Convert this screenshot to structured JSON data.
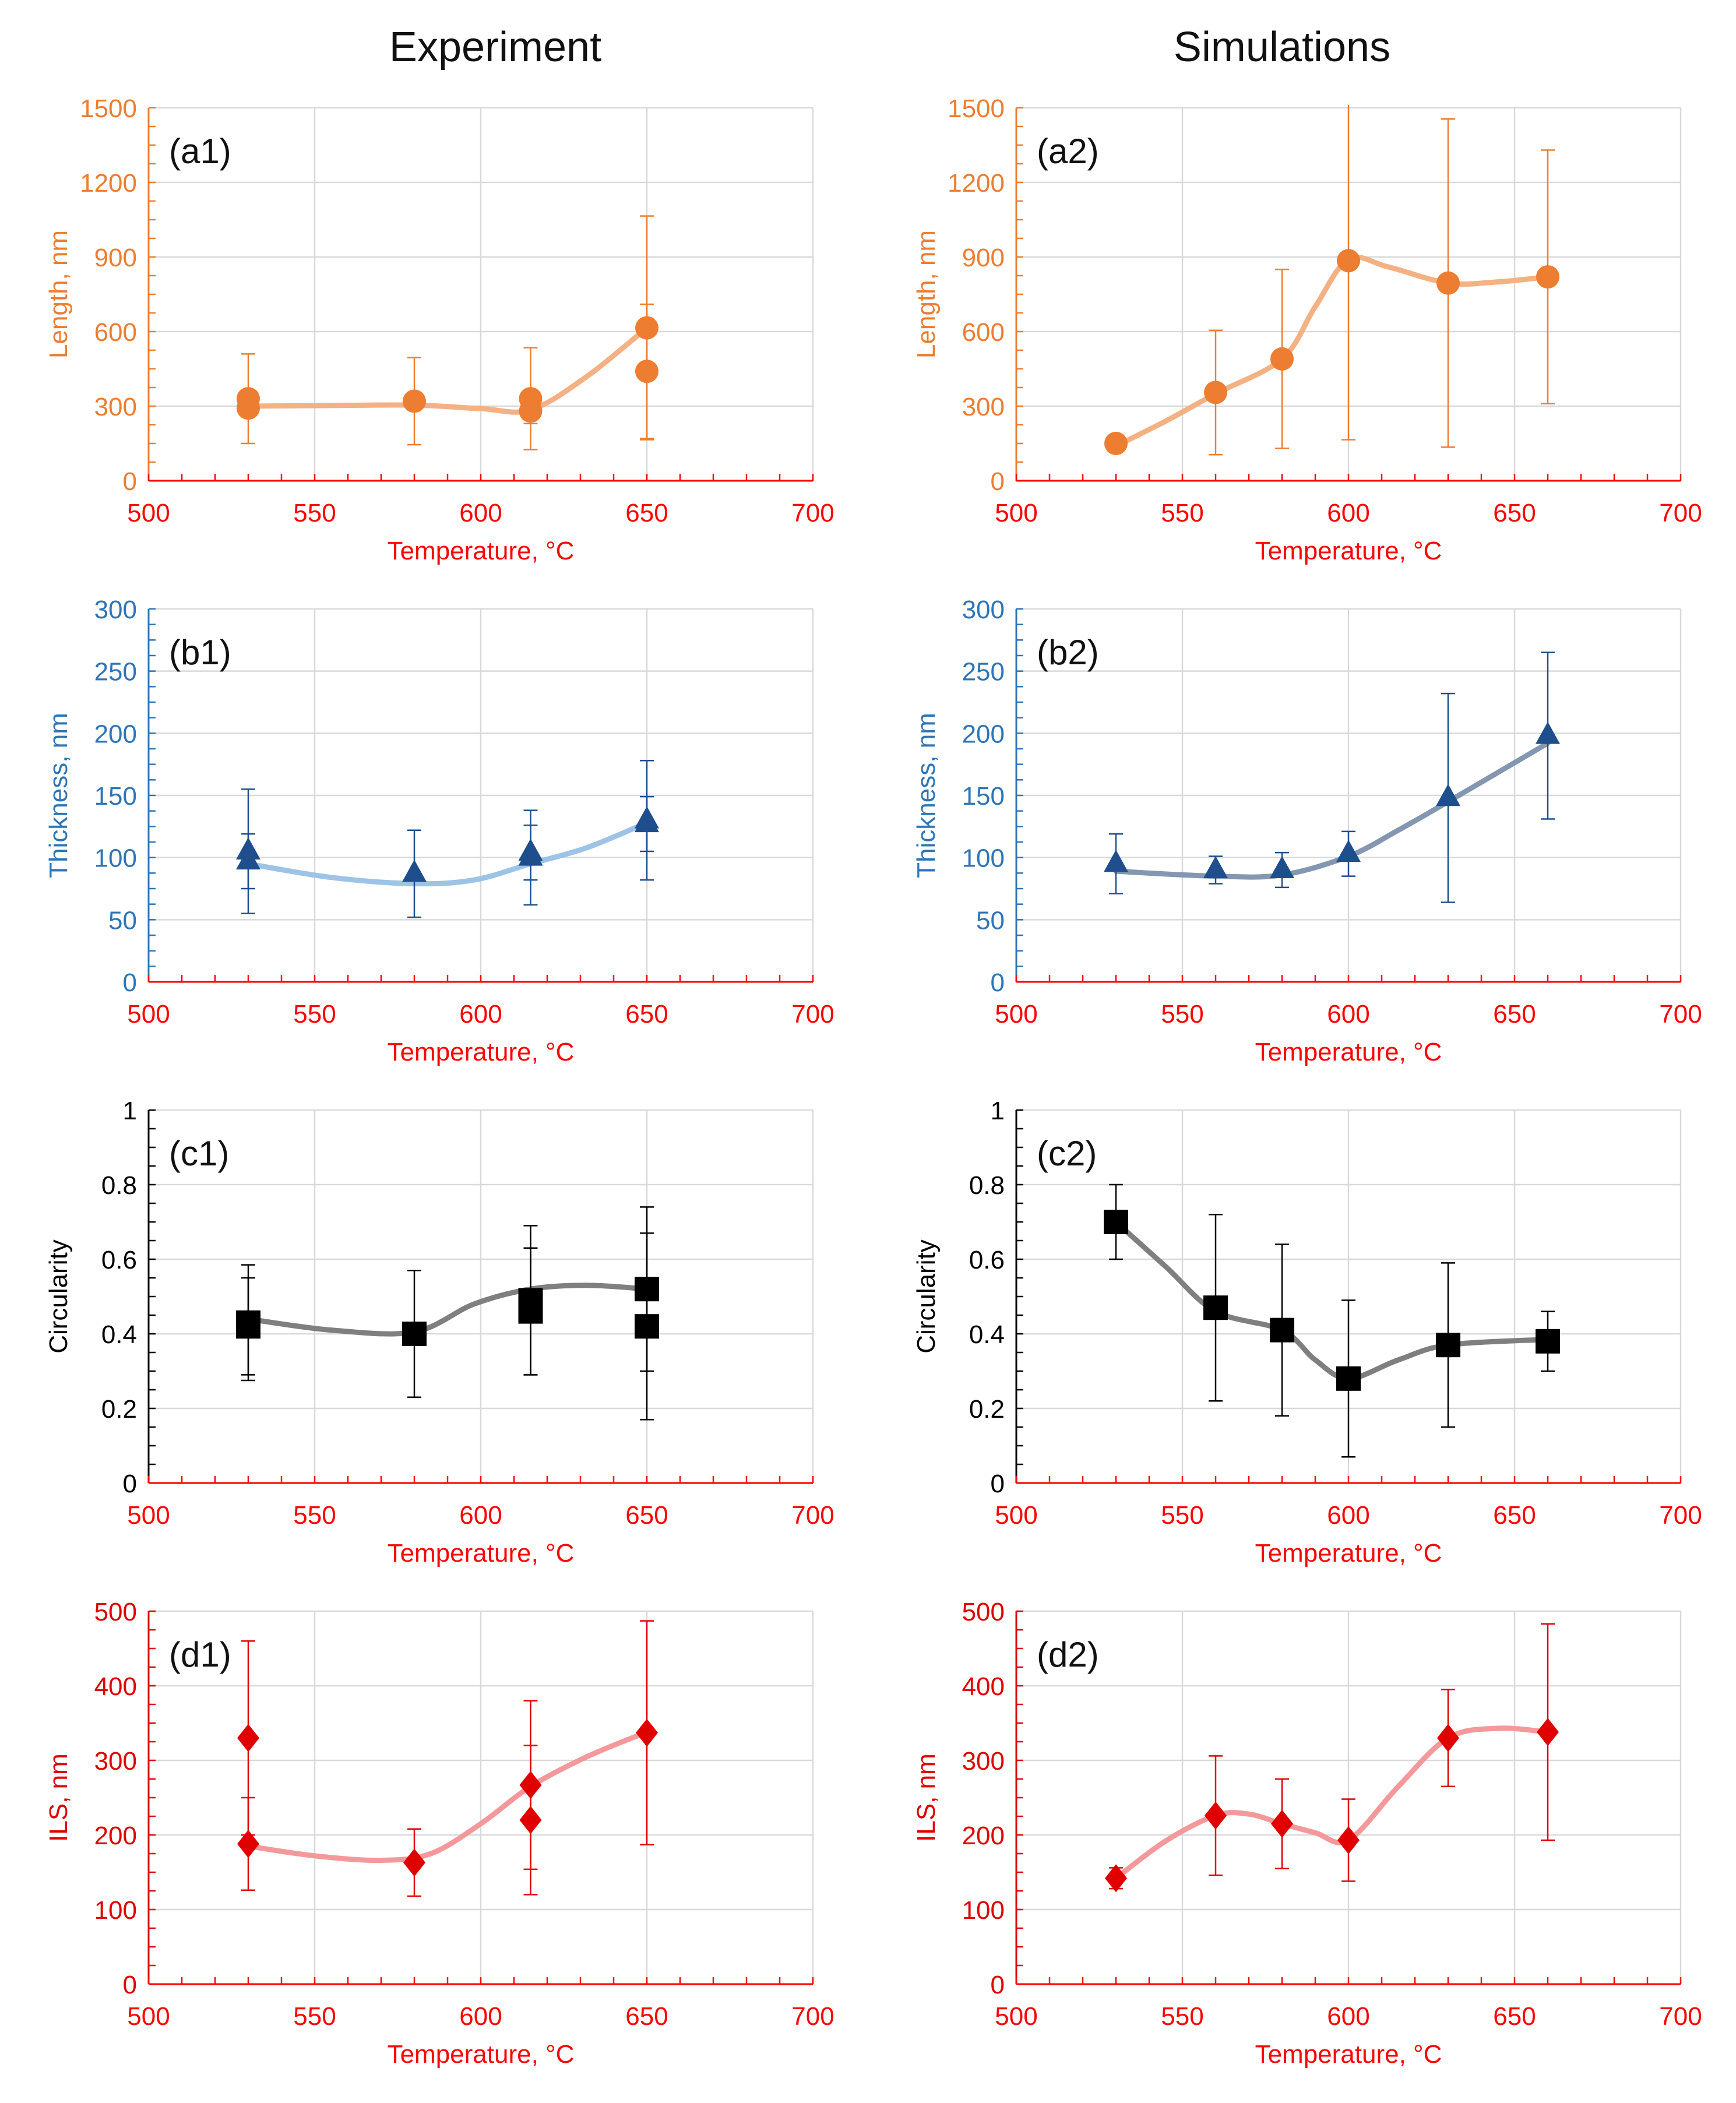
{
  "figure": {
    "column_titles": [
      "Experiment",
      "Simulations"
    ]
  },
  "chart_data": [
    {
      "id": "a1",
      "panel_label": "(a1)",
      "type": "scatter",
      "color": "#ED7D31",
      "curve_color": "#F4B183",
      "axis_color": "#ED7D31",
      "x_axis_color": "#FF0000",
      "marker": "circle",
      "xlabel": "Temperature, °C",
      "ylabel": "Length, nm",
      "xlim": [
        500,
        700
      ],
      "ylim": [
        0,
        1500
      ],
      "xticks": [
        500,
        550,
        600,
        650,
        700
      ],
      "yticks": [
        0,
        300,
        600,
        900,
        1200,
        1500
      ],
      "ytick_labels": [
        "0",
        "300",
        "600",
        "900",
        "1200",
        "1500"
      ],
      "points": [
        {
          "x": 530,
          "y": 330,
          "err": 180
        },
        {
          "x": 530,
          "y": 292,
          "err": 25
        },
        {
          "x": 580,
          "y": 320,
          "err": 175
        },
        {
          "x": 615,
          "y": 330,
          "err": 205
        },
        {
          "x": 615,
          "y": 280,
          "err": 50
        },
        {
          "x": 650,
          "y": 615,
          "err": 450
        },
        {
          "x": 650,
          "y": 440,
          "err": 270
        }
      ],
      "curve": [
        [
          530,
          300
        ],
        [
          550,
          302
        ],
        [
          580,
          304
        ],
        [
          600,
          290
        ],
        [
          615,
          285
        ],
        [
          632,
          420
        ],
        [
          650,
          615
        ]
      ]
    },
    {
      "id": "a2",
      "panel_label": "(a2)",
      "type": "scatter",
      "color": "#ED7D31",
      "curve_color": "#F4B183",
      "axis_color": "#ED7D31",
      "x_axis_color": "#FF0000",
      "marker": "circle",
      "xlabel": "Temperature, °C",
      "ylabel": "Length, nm",
      "xlim": [
        500,
        700
      ],
      "ylim": [
        0,
        1500
      ],
      "xticks": [
        500,
        550,
        600,
        650,
        700
      ],
      "yticks": [
        0,
        300,
        600,
        900,
        1200,
        1500
      ],
      "ytick_labels": [
        "0",
        "300",
        "600",
        "900",
        "1200",
        "1500"
      ],
      "points": [
        {
          "x": 530,
          "y": 150,
          "err": 35
        },
        {
          "x": 560,
          "y": 355,
          "err": 250
        },
        {
          "x": 580,
          "y": 490,
          "err": 360
        },
        {
          "x": 600,
          "y": 885,
          "err": 720
        },
        {
          "x": 630,
          "y": 795,
          "err": 660
        },
        {
          "x": 660,
          "y": 820,
          "err": 510
        }
      ],
      "curve": [
        [
          530,
          140
        ],
        [
          545,
          240
        ],
        [
          560,
          350
        ],
        [
          580,
          490
        ],
        [
          590,
          700
        ],
        [
          600,
          890
        ],
        [
          612,
          860
        ],
        [
          630,
          795
        ],
        [
          645,
          800
        ],
        [
          660,
          820
        ]
      ]
    },
    {
      "id": "b1",
      "panel_label": "(b1)",
      "type": "scatter",
      "color": "#1F4E8C",
      "curve_color": "#9DC3E6",
      "axis_color": "#2E75B6",
      "x_axis_color": "#FF0000",
      "marker": "triangle",
      "xlabel": "Temperature, °C",
      "ylabel": "Thickness, nm",
      "xlim": [
        500,
        700
      ],
      "ylim": [
        0,
        300
      ],
      "xticks": [
        500,
        550,
        600,
        650,
        700
      ],
      "yticks": [
        0,
        50,
        100,
        150,
        200,
        250,
        300
      ],
      "ytick_labels": [
        "0",
        "50",
        "100",
        "150",
        "200",
        "250",
        "300"
      ],
      "points": [
        {
          "x": 530,
          "y": 105,
          "err": 50
        },
        {
          "x": 530,
          "y": 97,
          "err": 22
        },
        {
          "x": 580,
          "y": 87,
          "err": 35
        },
        {
          "x": 615,
          "y": 100,
          "err": 38
        },
        {
          "x": 615,
          "y": 104,
          "err": 22
        },
        {
          "x": 650,
          "y": 130,
          "err": 48
        },
        {
          "x": 650,
          "y": 127,
          "err": 22
        }
      ],
      "curve": [
        [
          530,
          95
        ],
        [
          555,
          84
        ],
        [
          580,
          79
        ],
        [
          598,
          82
        ],
        [
          615,
          95
        ],
        [
          632,
          108
        ],
        [
          650,
          128
        ]
      ]
    },
    {
      "id": "b2",
      "panel_label": "(b2)",
      "type": "scatter",
      "color": "#1F4E8C",
      "curve_color": "#8497B0",
      "axis_color": "#2E75B6",
      "x_axis_color": "#FF0000",
      "marker": "triangle",
      "xlabel": "Temperature, °C",
      "ylabel": "Thickness, nm",
      "xlim": [
        500,
        700
      ],
      "ylim": [
        0,
        300
      ],
      "xticks": [
        500,
        550,
        600,
        650,
        700
      ],
      "yticks": [
        0,
        50,
        100,
        150,
        200,
        250,
        300
      ],
      "ytick_labels": [
        "0",
        "50",
        "100",
        "150",
        "200",
        "250",
        "300"
      ],
      "points": [
        {
          "x": 530,
          "y": 95,
          "err": 24
        },
        {
          "x": 560,
          "y": 90,
          "err": 11
        },
        {
          "x": 580,
          "y": 90,
          "err": 14
        },
        {
          "x": 600,
          "y": 103,
          "err": 18
        },
        {
          "x": 630,
          "y": 148,
          "err": 84
        },
        {
          "x": 660,
          "y": 198,
          "err": 67
        }
      ],
      "curve": [
        [
          530,
          89
        ],
        [
          560,
          85
        ],
        [
          580,
          86
        ],
        [
          600,
          101
        ],
        [
          615,
          122
        ],
        [
          630,
          145
        ],
        [
          660,
          192
        ]
      ]
    },
    {
      "id": "c1",
      "panel_label": "(c1)",
      "type": "scatter",
      "color": "#000000",
      "curve_color": "#7F7F7F",
      "axis_color": "#000000",
      "x_axis_color": "#FF0000",
      "marker": "square",
      "xlabel": "Temperature, °C",
      "ylabel": "Circularity",
      "xlim": [
        500,
        700
      ],
      "ylim": [
        0,
        1
      ],
      "xticks": [
        500,
        550,
        600,
        650,
        700
      ],
      "yticks": [
        0,
        0.2,
        0.4,
        0.6,
        0.8,
        1
      ],
      "ytick_labels": [
        "0",
        "0.2",
        "0.4",
        "0.6",
        "0.8",
        "1"
      ],
      "points": [
        {
          "x": 530,
          "y": 0.43,
          "err": 0.155
        },
        {
          "x": 530,
          "y": 0.42,
          "err": 0.13
        },
        {
          "x": 580,
          "y": 0.4,
          "err": 0.17
        },
        {
          "x": 615,
          "y": 0.49,
          "err": 0.2
        },
        {
          "x": 615,
          "y": 0.46,
          "err": 0.17
        },
        {
          "x": 650,
          "y": 0.52,
          "err": 0.22
        },
        {
          "x": 650,
          "y": 0.42,
          "err": 0.25
        }
      ],
      "curve": [
        [
          530,
          0.44
        ],
        [
          555,
          0.41
        ],
        [
          580,
          0.405
        ],
        [
          598,
          0.48
        ],
        [
          615,
          0.52
        ],
        [
          632,
          0.53
        ],
        [
          650,
          0.52
        ]
      ]
    },
    {
      "id": "c2",
      "panel_label": "(c2)",
      "type": "scatter",
      "color": "#000000",
      "curve_color": "#7F7F7F",
      "axis_color": "#000000",
      "x_axis_color": "#FF0000",
      "marker": "square",
      "xlabel": "Temperature, °C",
      "ylabel": "Circularity",
      "xlim": [
        500,
        700
      ],
      "ylim": [
        0,
        1
      ],
      "xticks": [
        500,
        550,
        600,
        650,
        700
      ],
      "yticks": [
        0,
        0.2,
        0.4,
        0.6,
        0.8,
        1
      ],
      "ytick_labels": [
        "0",
        "0.2",
        "0.4",
        "0.6",
        "0.8",
        "1"
      ],
      "points": [
        {
          "x": 530,
          "y": 0.7,
          "err": 0.1
        },
        {
          "x": 560,
          "y": 0.47,
          "err": 0.25
        },
        {
          "x": 580,
          "y": 0.41,
          "err": 0.23
        },
        {
          "x": 600,
          "y": 0.28,
          "err": 0.21
        },
        {
          "x": 630,
          "y": 0.37,
          "err": 0.22
        },
        {
          "x": 660,
          "y": 0.38,
          "err": 0.08
        }
      ],
      "curve": [
        [
          530,
          0.7
        ],
        [
          545,
          0.58
        ],
        [
          560,
          0.46
        ],
        [
          580,
          0.41
        ],
        [
          590,
          0.33
        ],
        [
          600,
          0.28
        ],
        [
          615,
          0.33
        ],
        [
          630,
          0.37
        ],
        [
          660,
          0.385
        ]
      ]
    },
    {
      "id": "d1",
      "panel_label": "(d1)",
      "type": "scatter",
      "color": "#E00000",
      "curve_color": "#F4999B",
      "axis_color": "#E00000",
      "x_axis_color": "#FF0000",
      "marker": "diamond",
      "xlabel": "Temperature, °C",
      "ylabel": "ILS, nm",
      "xlim": [
        500,
        700
      ],
      "ylim": [
        0,
        500
      ],
      "xticks": [
        500,
        550,
        600,
        650,
        700
      ],
      "yticks": [
        0,
        100,
        200,
        300,
        400,
        500
      ],
      "ytick_labels": [
        "0",
        "100",
        "200",
        "300",
        "400",
        "500"
      ],
      "points": [
        {
          "x": 530,
          "y": 330,
          "err": 130
        },
        {
          "x": 530,
          "y": 188,
          "err": 62
        },
        {
          "x": 580,
          "y": 163,
          "err": 45
        },
        {
          "x": 615,
          "y": 267,
          "err": 113
        },
        {
          "x": 615,
          "y": 220,
          "err": 100
        },
        {
          "x": 650,
          "y": 337,
          "err": 150
        }
      ],
      "curve": [
        [
          530,
          185
        ],
        [
          550,
          172
        ],
        [
          570,
          166
        ],
        [
          585,
          175
        ],
        [
          600,
          215
        ],
        [
          615,
          265
        ],
        [
          632,
          305
        ],
        [
          650,
          338
        ]
      ]
    },
    {
      "id": "d2",
      "panel_label": "(d2)",
      "type": "scatter",
      "color": "#E00000",
      "curve_color": "#F4999B",
      "axis_color": "#E00000",
      "x_axis_color": "#FF0000",
      "marker": "diamond",
      "xlabel": "Temperature, °C",
      "ylabel": "ILS, nm",
      "xlim": [
        500,
        700
      ],
      "ylim": [
        0,
        500
      ],
      "xticks": [
        500,
        550,
        600,
        650,
        700
      ],
      "yticks": [
        0,
        100,
        200,
        300,
        400,
        500
      ],
      "ytick_labels": [
        "0",
        "100",
        "200",
        "300",
        "400",
        "500"
      ],
      "points": [
        {
          "x": 530,
          "y": 142,
          "err": 14
        },
        {
          "x": 560,
          "y": 226,
          "err": 80
        },
        {
          "x": 580,
          "y": 215,
          "err": 60
        },
        {
          "x": 600,
          "y": 193,
          "err": 55
        },
        {
          "x": 630,
          "y": 330,
          "err": 65
        },
        {
          "x": 660,
          "y": 338,
          "err": 145
        }
      ],
      "curve": [
        [
          530,
          142
        ],
        [
          545,
          192
        ],
        [
          560,
          226
        ],
        [
          570,
          228
        ],
        [
          580,
          215
        ],
        [
          590,
          203
        ],
        [
          600,
          193
        ],
        [
          615,
          265
        ],
        [
          630,
          330
        ],
        [
          645,
          343
        ],
        [
          660,
          338
        ]
      ]
    }
  ]
}
